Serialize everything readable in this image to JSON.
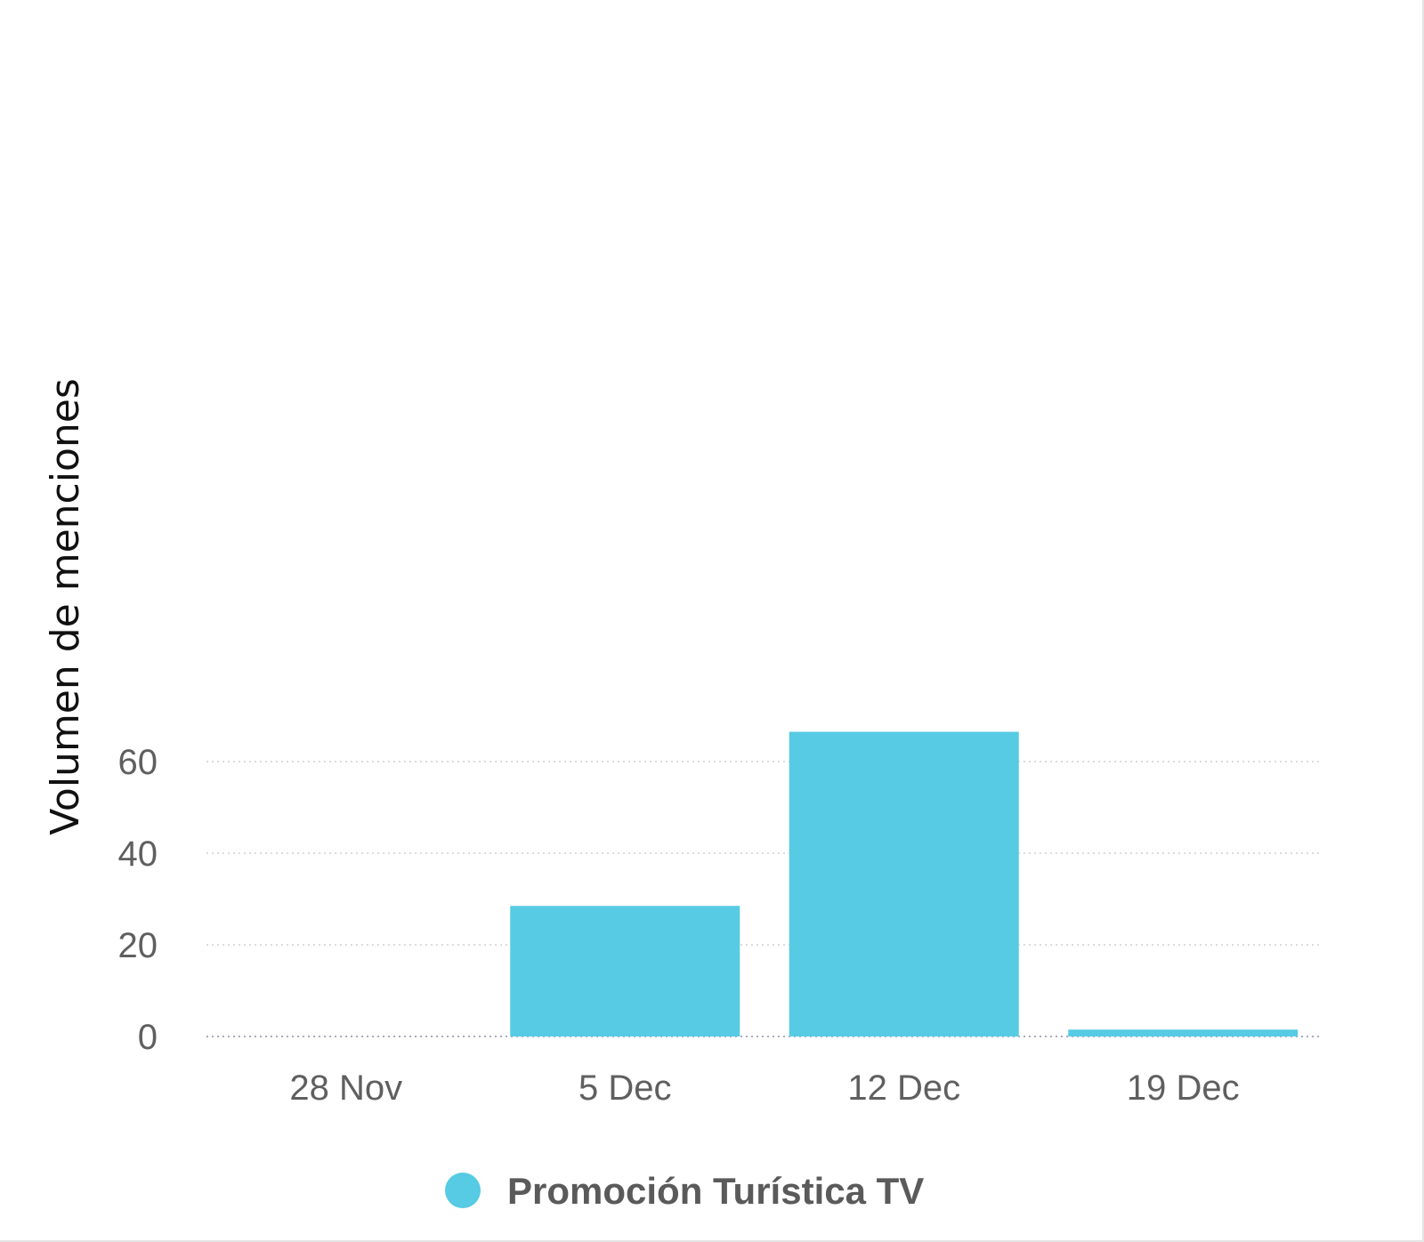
{
  "chart_data": {
    "type": "bar",
    "title": "",
    "xlabel": "",
    "ylabel": "Volumen de menciones",
    "categories": [
      "28 Nov",
      "5 Dec",
      "12 Dec",
      "19 Dec"
    ],
    "series": [
      {
        "name": "Promoción Turística TV",
        "values": [
          0,
          28.5,
          66.5,
          1.5
        ],
        "color": "#56cbe3"
      }
    ],
    "y_ticks": [
      0,
      20,
      40,
      60
    ],
    "ylim": [
      0,
      70
    ],
    "grid": true,
    "grid_style": "dotted",
    "legend_position": "bottom-center"
  }
}
